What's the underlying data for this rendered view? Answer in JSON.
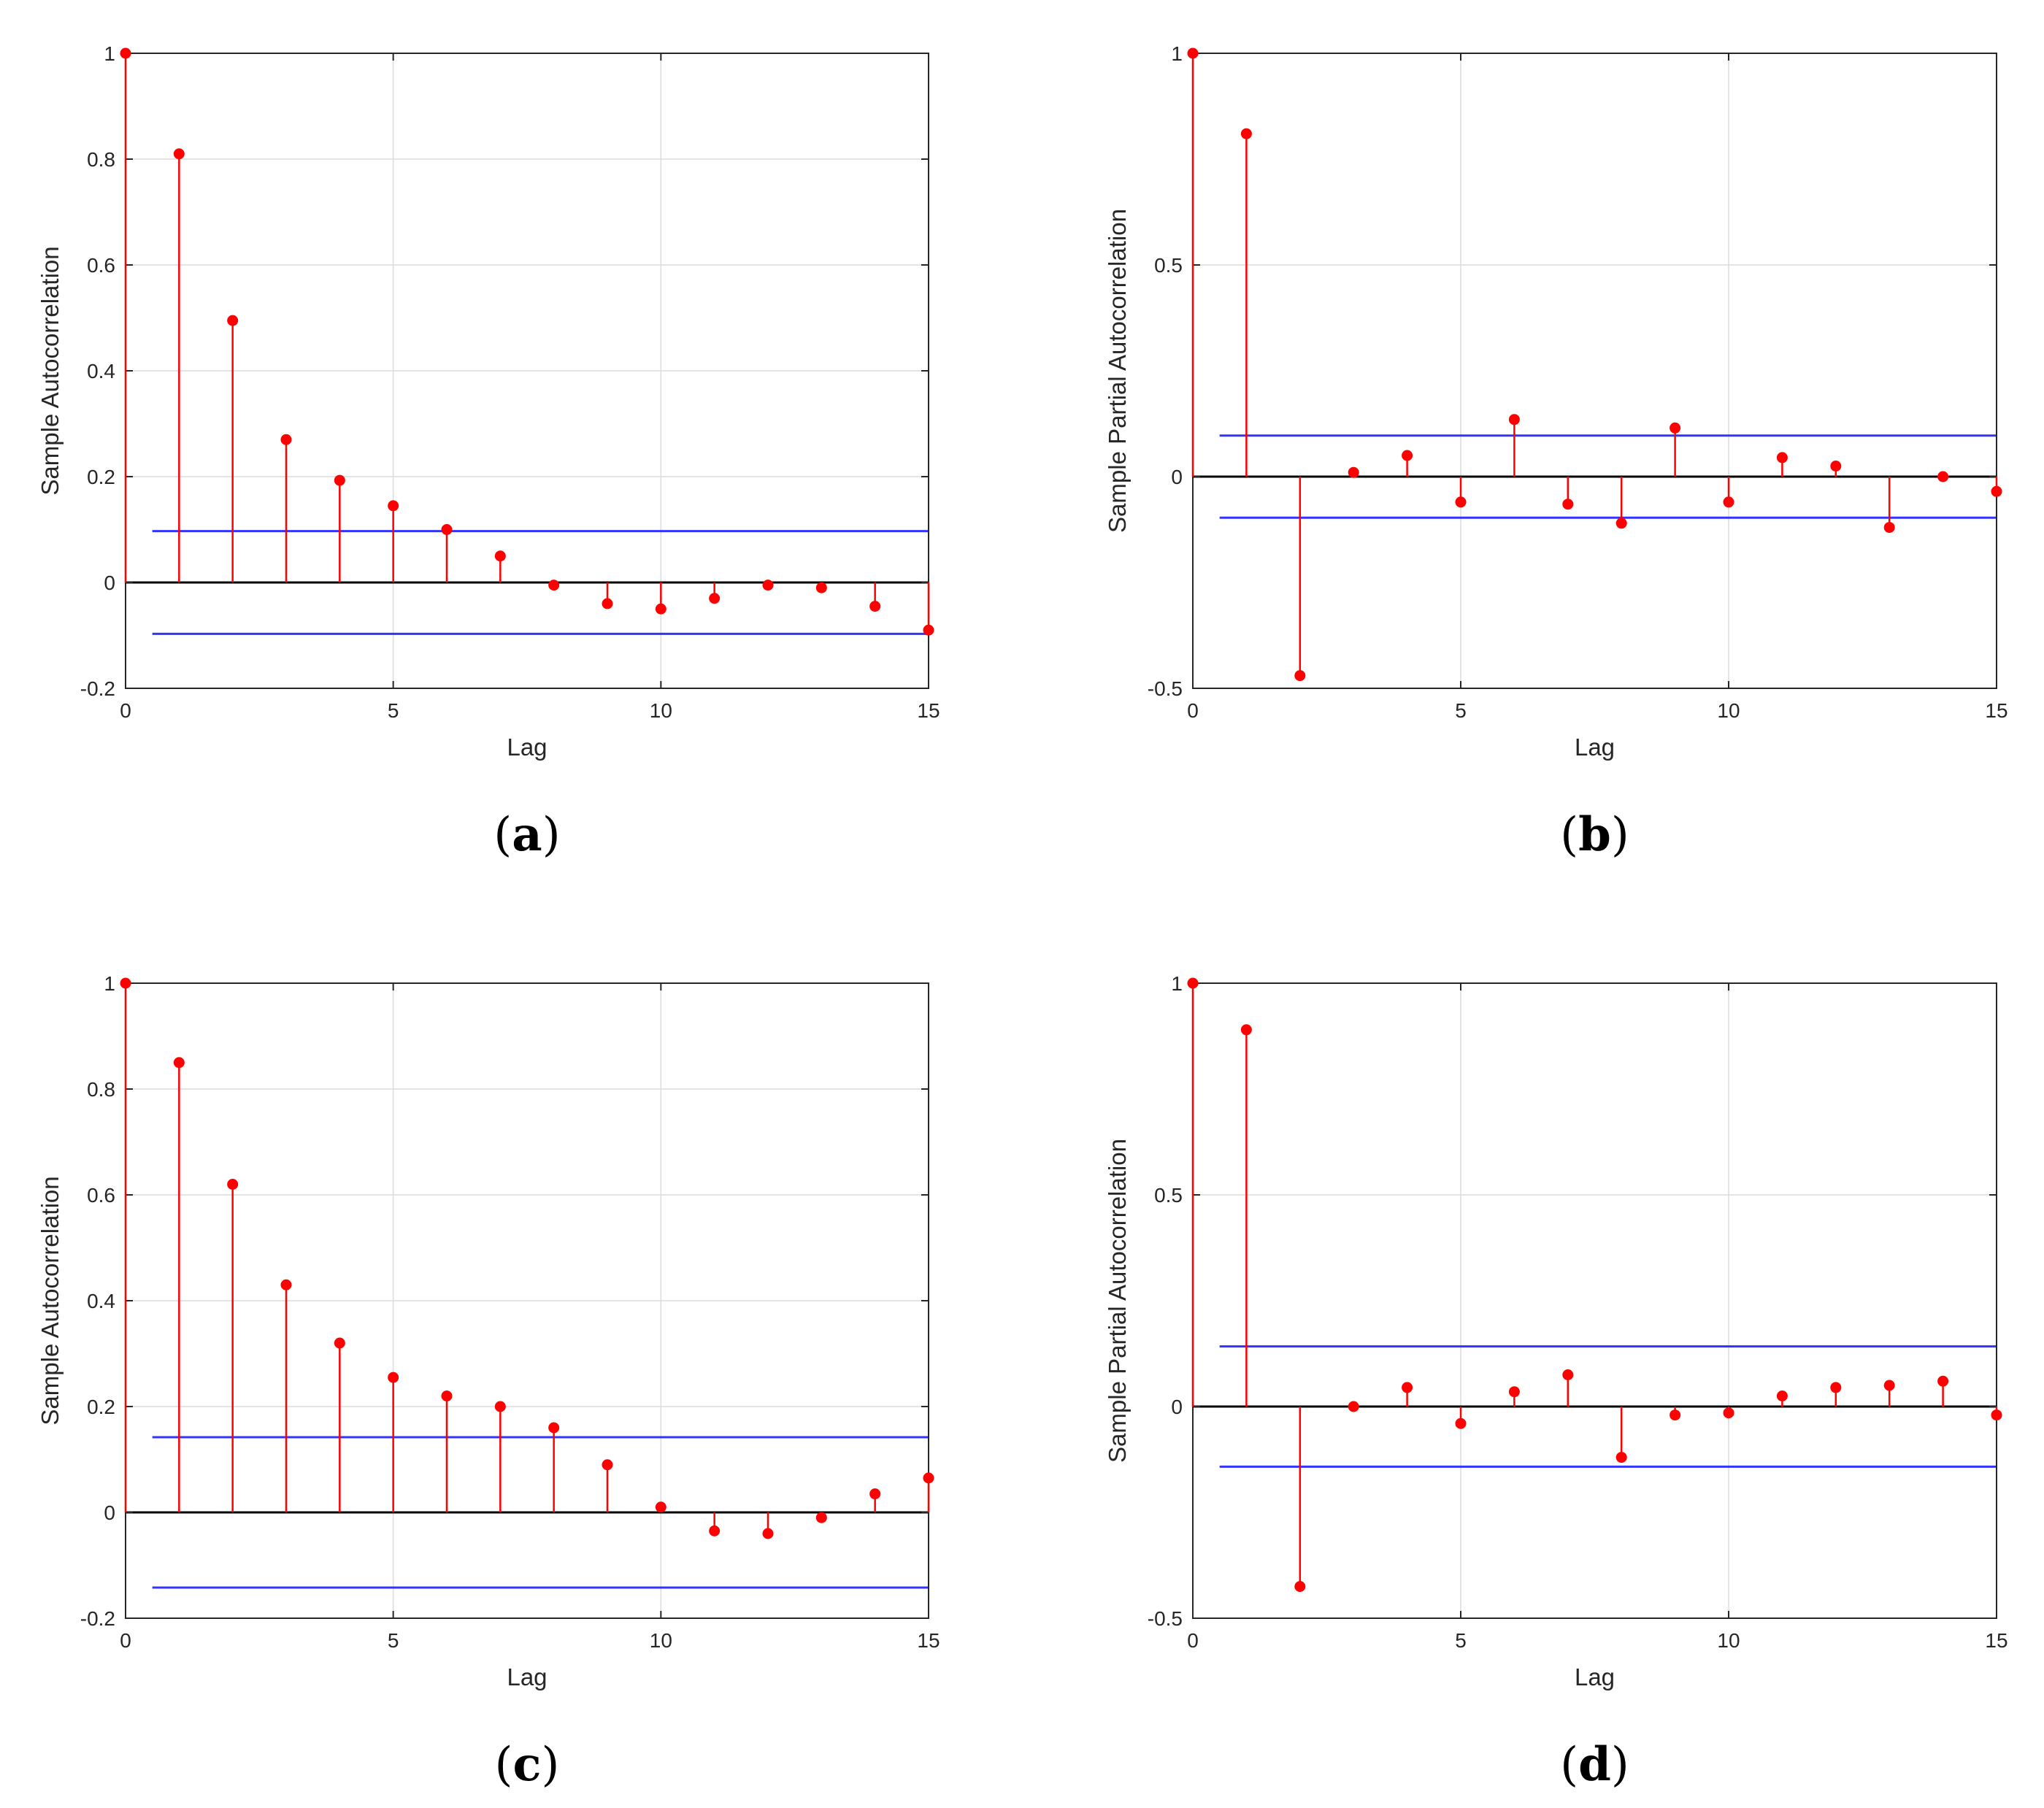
{
  "style": {
    "stem_color": "#ff0000",
    "bound_color": "#3333ff",
    "zero_line_color": "#000000",
    "grid_color": "#dcdcdc",
    "axis_color": "#262626"
  },
  "chart_data": [
    {
      "type": "stem",
      "panel": "a",
      "caption": "a",
      "title": "",
      "xlabel": "Lag",
      "ylabel": "Sample Autocorrelation",
      "xlim": [
        0,
        15
      ],
      "ylim": [
        -0.2,
        1
      ],
      "xticks": [
        0,
        5,
        10,
        15
      ],
      "xtick_labels": [
        "0",
        "5",
        "10",
        "15"
      ],
      "yticks": [
        -0.2,
        0,
        0.2,
        0.4,
        0.6,
        0.8,
        1
      ],
      "ytick_labels": [
        "-0.2",
        "0",
        "0.2",
        "0.4",
        "0.6",
        "0.8",
        "1"
      ],
      "grid": true,
      "lags": [
        0,
        1,
        2,
        3,
        4,
        5,
        6,
        7,
        8,
        9,
        10,
        11,
        12,
        13,
        14,
        15
      ],
      "values": [
        1.0,
        0.81,
        0.495,
        0.27,
        0.193,
        0.145,
        0.1,
        0.05,
        -0.005,
        -0.04,
        -0.05,
        -0.03,
        -0.005,
        -0.01,
        -0.045,
        -0.09
      ],
      "confidence_bounds": [
        0.097,
        -0.097
      ]
    },
    {
      "type": "stem",
      "panel": "b",
      "caption": "b",
      "title": "",
      "xlabel": "Lag",
      "ylabel": "Sample Partial Autocorrelation",
      "xlim": [
        0,
        15
      ],
      "ylim": [
        -0.5,
        1
      ],
      "xticks": [
        0,
        5,
        10,
        15
      ],
      "xtick_labels": [
        "0",
        "5",
        "10",
        "15"
      ],
      "yticks": [
        -0.5,
        0,
        0.5,
        1
      ],
      "ytick_labels": [
        "-0.5",
        "0",
        "0.5",
        "1"
      ],
      "grid": true,
      "lags": [
        0,
        1,
        2,
        3,
        4,
        5,
        6,
        7,
        8,
        9,
        10,
        11,
        12,
        13,
        14,
        15
      ],
      "values": [
        1.0,
        0.81,
        -0.47,
        0.01,
        0.05,
        -0.06,
        0.135,
        -0.065,
        -0.11,
        0.115,
        -0.06,
        0.045,
        0.025,
        -0.12,
        0.0,
        -0.035
      ],
      "confidence_bounds": [
        0.097,
        -0.097
      ]
    },
    {
      "type": "stem",
      "panel": "c",
      "caption": "c",
      "title": "",
      "xlabel": "Lag",
      "ylabel": "Sample Autocorrelation",
      "xlim": [
        0,
        15
      ],
      "ylim": [
        -0.2,
        1
      ],
      "xticks": [
        0,
        5,
        10,
        15
      ],
      "xtick_labels": [
        "0",
        "5",
        "10",
        "15"
      ],
      "yticks": [
        -0.2,
        0,
        0.2,
        0.4,
        0.6,
        0.8,
        1
      ],
      "ytick_labels": [
        "-0.2",
        "0",
        "0.2",
        "0.4",
        "0.6",
        "0.8",
        "1"
      ],
      "grid": true,
      "lags": [
        0,
        1,
        2,
        3,
        4,
        5,
        6,
        7,
        8,
        9,
        10,
        11,
        12,
        13,
        14,
        15
      ],
      "values": [
        1.0,
        0.85,
        0.62,
        0.43,
        0.32,
        0.255,
        0.22,
        0.2,
        0.16,
        0.09,
        0.01,
        -0.035,
        -0.04,
        -0.01,
        0.035,
        0.065
      ],
      "confidence_bounds": [
        0.142,
        -0.142
      ]
    },
    {
      "type": "stem",
      "panel": "d",
      "caption": "d",
      "title": "",
      "xlabel": "Lag",
      "ylabel": "Sample Partial Autocorrelation",
      "xlim": [
        0,
        15
      ],
      "ylim": [
        -0.5,
        1
      ],
      "xticks": [
        0,
        5,
        10,
        15
      ],
      "xtick_labels": [
        "0",
        "5",
        "10",
        "15"
      ],
      "yticks": [
        -0.5,
        0,
        0.5,
        1
      ],
      "ytick_labels": [
        "-0.5",
        "0",
        "0.5",
        "1"
      ],
      "grid": true,
      "lags": [
        0,
        1,
        2,
        3,
        4,
        5,
        6,
        7,
        8,
        9,
        10,
        11,
        12,
        13,
        14,
        15
      ],
      "values": [
        1.0,
        0.89,
        -0.425,
        0.0,
        0.045,
        -0.04,
        0.035,
        0.075,
        -0.12,
        -0.02,
        -0.015,
        0.025,
        0.045,
        0.05,
        0.06,
        -0.02
      ],
      "confidence_bounds": [
        0.142,
        -0.142
      ]
    }
  ]
}
